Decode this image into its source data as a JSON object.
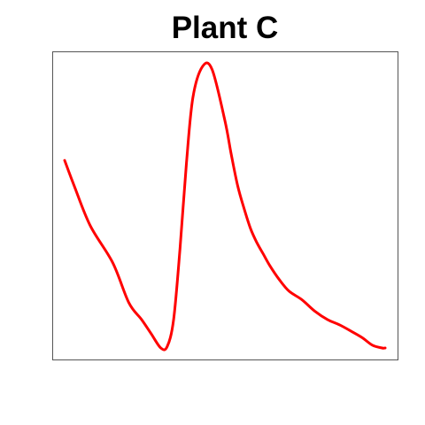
{
  "chart_data": {
    "type": "line",
    "title": "Plant C",
    "xlabel": "",
    "ylabel": "",
    "axes_shown": false,
    "ticks_shown": false,
    "grid": false,
    "legend": "none",
    "xlim": [
      0,
      1
    ],
    "ylim": [
      0,
      1
    ],
    "series": [
      {
        "color": "#ff0000",
        "x": [
          0.0,
          0.03,
          0.08,
          0.15,
          0.2,
          0.24,
          0.27,
          0.3,
          0.32,
          0.34,
          0.36,
          0.38,
          0.4,
          0.43,
          0.46,
          0.5,
          0.52,
          0.54,
          0.56,
          0.58,
          0.6,
          0.62,
          0.64,
          0.67,
          0.7,
          0.74,
          0.78,
          0.82,
          0.86,
          0.9,
          0.93,
          0.96,
          0.99,
          1.0
        ],
        "y": [
          0.66,
          0.57,
          0.43,
          0.3,
          0.16,
          0.1,
          0.05,
          0.0,
          0.005,
          0.1,
          0.35,
          0.65,
          0.88,
          0.99,
          0.98,
          0.8,
          0.68,
          0.57,
          0.49,
          0.42,
          0.37,
          0.33,
          0.29,
          0.24,
          0.2,
          0.17,
          0.13,
          0.1,
          0.08,
          0.055,
          0.035,
          0.01,
          0.0,
          0.0
        ]
      }
    ]
  }
}
